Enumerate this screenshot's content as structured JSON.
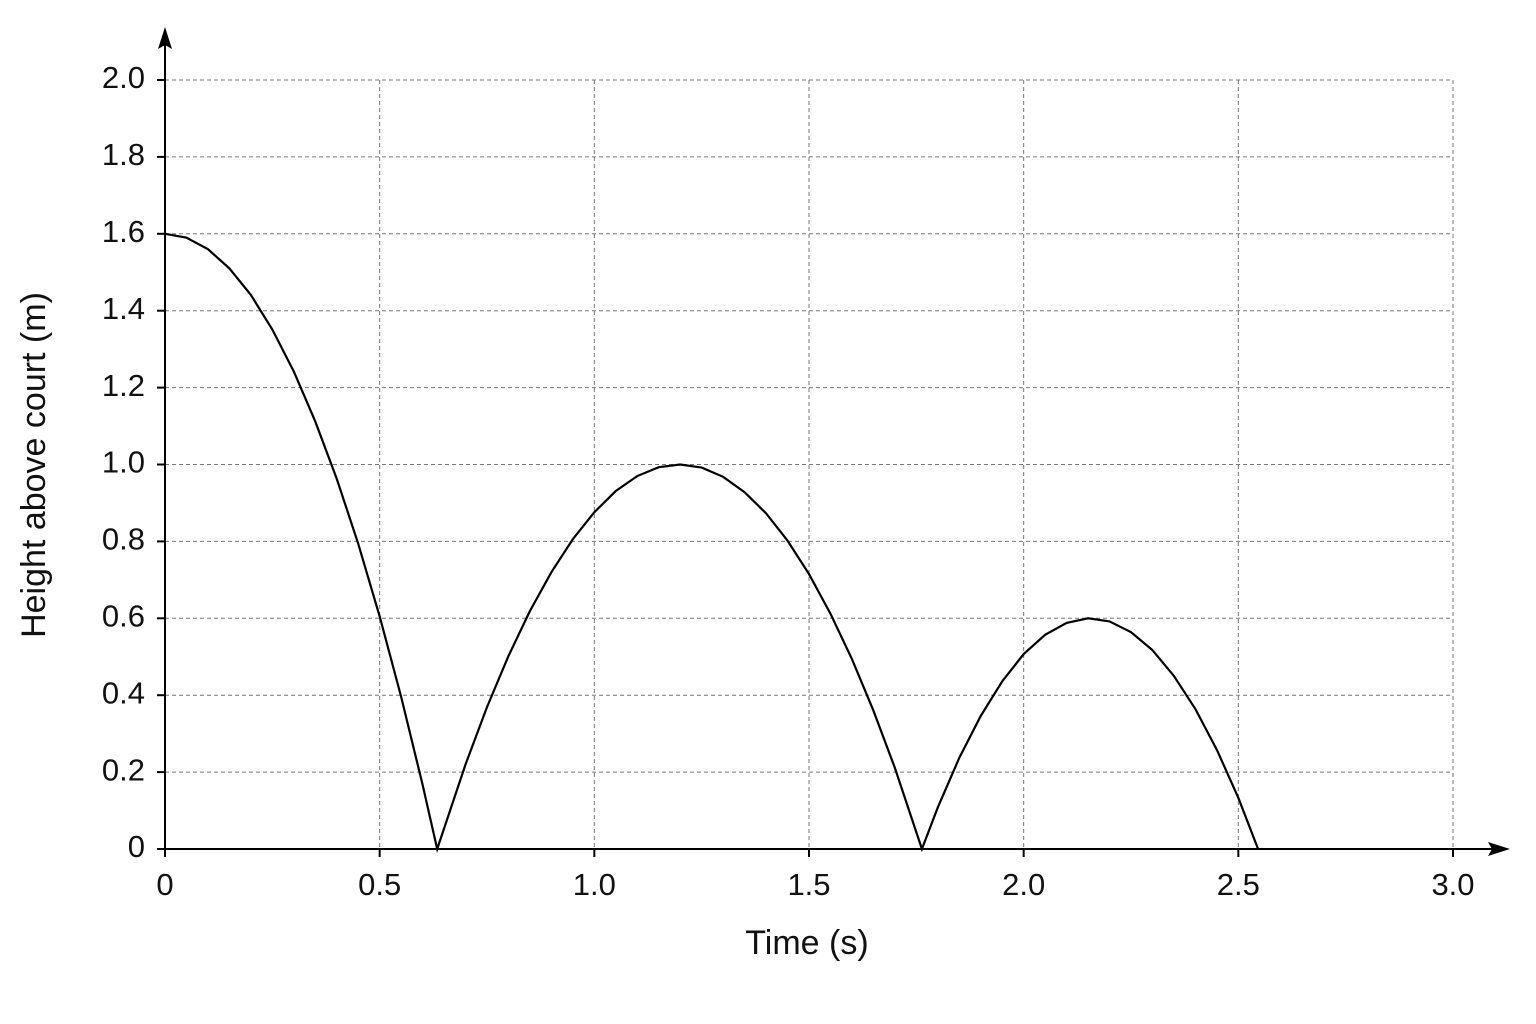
{
  "chart_data": {
    "type": "line",
    "x_label": "Time (s)",
    "y_label": "Height above court (m)",
    "x": [
      0,
      0.05,
      0.1,
      0.15,
      0.2,
      0.25,
      0.3,
      0.35,
      0.4,
      0.45,
      0.5,
      0.55,
      0.6,
      0.634,
      0.7,
      0.75,
      0.8,
      0.85,
      0.9,
      0.95,
      1.0,
      1.05,
      1.1,
      1.15,
      1.2,
      1.25,
      1.3,
      1.35,
      1.4,
      1.45,
      1.5,
      1.55,
      1.6,
      1.65,
      1.7,
      1.763,
      1.8,
      1.85,
      1.9,
      1.95,
      2.0,
      2.05,
      2.1,
      2.15,
      2.2,
      2.25,
      2.3,
      2.35,
      2.4,
      2.45,
      2.5,
      2.546
    ],
    "values": [
      1.6,
      1.59,
      1.56,
      1.51,
      1.441,
      1.351,
      1.242,
      1.112,
      0.963,
      0.794,
      0.605,
      0.396,
      0.167,
      0,
      0.22,
      0.369,
      0.502,
      0.619,
      0.72,
      0.806,
      0.876,
      0.931,
      0.97,
      0.993,
      1.0,
      0.992,
      0.968,
      0.928,
      0.873,
      0.802,
      0.715,
      0.612,
      0.494,
      0.36,
      0.211,
      0,
      0.108,
      0.237,
      0.346,
      0.436,
      0.507,
      0.557,
      0.588,
      0.6,
      0.592,
      0.564,
      0.517,
      0.45,
      0.364,
      0.258,
      0.133,
      0
    ],
    "color": "#000000",
    "xlim": [
      0,
      3
    ],
    "ylim": [
      0,
      2
    ],
    "xticks": [
      0,
      0.5,
      {
        "value": 1,
        "label": "1.0"
      },
      1.5,
      {
        "value": 2,
        "label": "2.0"
      },
      2.5,
      {
        "value": 3,
        "label": "3.0"
      }
    ],
    "yticks": [
      0,
      0.2,
      0.4,
      0.6,
      0.8,
      {
        "value": 1,
        "label": "1.0"
      },
      1.2,
      1.4,
      1.6,
      1.8,
      {
        "value": 2,
        "label": "2.0"
      }
    ],
    "grid": true
  }
}
